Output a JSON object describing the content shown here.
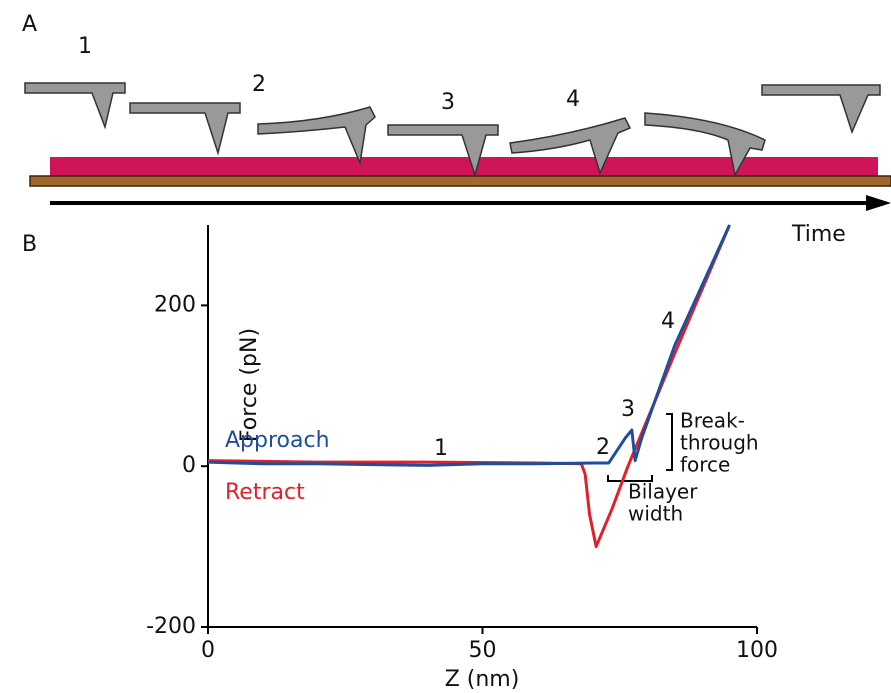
{
  "panel_labels": [
    "A",
    "B"
  ],
  "diagram": {
    "stage_labels": [
      "1",
      "2",
      "3",
      "4"
    ],
    "time_label": "Time"
  },
  "chart_data": {
    "type": "line",
    "x_label": "Z (nm)",
    "y_label": "Force (pN)",
    "xlim": [
      0,
      100
    ],
    "ylim": [
      -200,
      300
    ],
    "xticks": [
      0,
      50,
      100
    ],
    "yticks": [
      -200,
      0,
      200
    ],
    "series": [
      {
        "name": "Approach",
        "color": "#1f4e9c",
        "x": [
          0,
          5,
          10,
          20,
          30,
          40,
          50,
          60,
          70,
          73,
          76,
          77.2,
          77.8,
          79,
          85,
          95
        ],
        "values": [
          5,
          4,
          3,
          3,
          2,
          1,
          3,
          3,
          4,
          4,
          35,
          45,
          7,
          35,
          150,
          300
        ]
      },
      {
        "name": "Retract",
        "color": "#e0202a",
        "x": [
          0,
          20,
          40,
          60,
          68,
          68.7,
          69.5,
          70.7,
          73.6,
          76.5,
          85,
          95
        ],
        "values": [
          7,
          5,
          5,
          4,
          3,
          -10,
          -60,
          -100,
          -53,
          0,
          140,
          300
        ]
      }
    ],
    "annotations": [
      {
        "lines": [
          "1"
        ]
      },
      {
        "lines": [
          "2"
        ]
      },
      {
        "lines": [
          "3"
        ]
      },
      {
        "lines": [
          "4"
        ]
      },
      {
        "lines": [
          "Break-",
          "through",
          "force"
        ]
      },
      {
        "lines": [
          "Bilayer",
          "width"
        ]
      }
    ]
  }
}
